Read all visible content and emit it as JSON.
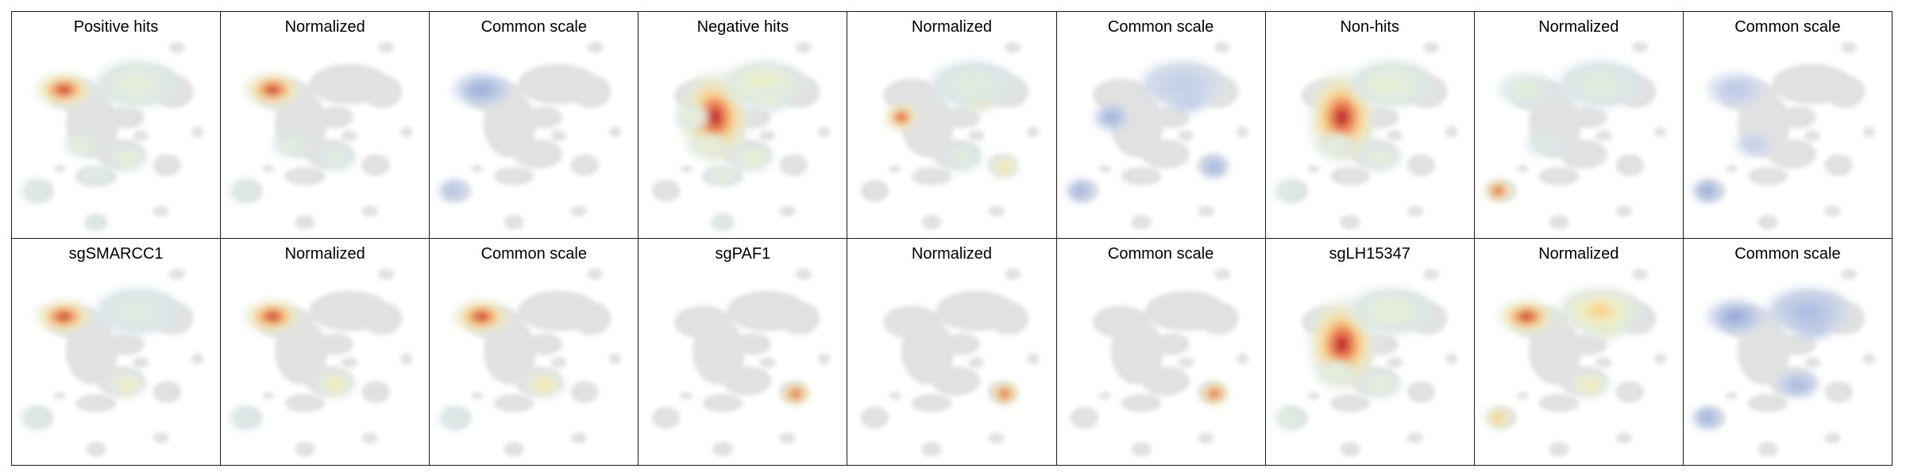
{
  "panels": [
    {
      "title": "Positive hits",
      "colormap": "heat",
      "blobs": [
        {
          "c": "A",
          "v": 1.0
        },
        {
          "c": "B",
          "v": 0.28
        },
        {
          "c": "E",
          "v": 0.3
        },
        {
          "c": "G",
          "v": 0.3
        },
        {
          "c": "H",
          "v": 0.22
        },
        {
          "c": "J",
          "v": 0.2
        },
        {
          "c": "K",
          "v": 0.15
        }
      ]
    },
    {
      "title": "Normalized",
      "colormap": "heat",
      "blobs": [
        {
          "c": "A",
          "v": 1.0
        },
        {
          "c": "E",
          "v": 0.25
        },
        {
          "c": "G",
          "v": 0.22
        },
        {
          "c": "J",
          "v": 0.18
        }
      ]
    },
    {
      "title": "Common scale",
      "colormap": "cool",
      "blobs": [
        {
          "c": "A",
          "v": 0.55
        },
        {
          "c": "J",
          "v": 0.35
        }
      ]
    },
    {
      "title": "Negative hits",
      "colormap": "heat",
      "blobs": [
        {
          "c": "C",
          "v": 1.0
        },
        {
          "c": "B",
          "v": 0.42
        },
        {
          "c": "D",
          "v": 0.3
        },
        {
          "c": "E",
          "v": 0.4
        },
        {
          "c": "F",
          "v": 0.3
        },
        {
          "c": "G",
          "v": 0.38
        },
        {
          "c": "H",
          "v": 0.28
        },
        {
          "c": "K",
          "v": 0.22
        }
      ]
    },
    {
      "title": "Normalized",
      "colormap": "heat",
      "blobs": [
        {
          "c": "D",
          "v": 1.0
        },
        {
          "c": "F",
          "v": 0.7
        },
        {
          "c": "I",
          "v": 0.55
        },
        {
          "c": "B",
          "v": 0.2
        },
        {
          "c": "G",
          "v": 0.2
        }
      ]
    },
    {
      "title": "Common scale",
      "colormap": "cool",
      "blobs": [
        {
          "c": "D",
          "v": 0.55
        },
        {
          "c": "F",
          "v": 0.5
        },
        {
          "c": "I",
          "v": 0.5
        },
        {
          "c": "J",
          "v": 0.5
        },
        {
          "c": "B",
          "v": 0.2
        }
      ]
    },
    {
      "title": "Non-hits",
      "colormap": "heat",
      "blobs": [
        {
          "c": "C",
          "v": 1.0
        },
        {
          "c": "B",
          "v": 0.3
        },
        {
          "c": "E",
          "v": 0.28
        },
        {
          "c": "G",
          "v": 0.28
        },
        {
          "c": "J",
          "v": 0.2
        }
      ]
    },
    {
      "title": "Normalized",
      "colormap": "heat",
      "blobs": [
        {
          "c": "J",
          "v": 1.0
        },
        {
          "c": "A",
          "v": 0.25
        },
        {
          "c": "B",
          "v": 0.2
        },
        {
          "c": "E",
          "v": 0.18
        }
      ]
    },
    {
      "title": "Common scale",
      "colormap": "cool",
      "blobs": [
        {
          "c": "J",
          "v": 0.6
        },
        {
          "c": "A",
          "v": 0.25
        },
        {
          "c": "E",
          "v": 0.2
        }
      ]
    },
    {
      "title": "sgSMARCC1",
      "colormap": "heat",
      "blobs": [
        {
          "c": "A",
          "v": 1.0
        },
        {
          "c": "G",
          "v": 0.45
        },
        {
          "c": "B",
          "v": 0.18
        },
        {
          "c": "J",
          "v": 0.18
        }
      ]
    },
    {
      "title": "Normalized",
      "colormap": "heat",
      "blobs": [
        {
          "c": "A",
          "v": 1.0
        },
        {
          "c": "G",
          "v": 0.5
        },
        {
          "c": "J",
          "v": 0.15
        }
      ]
    },
    {
      "title": "Common scale",
      "colormap": "heat",
      "blobs": [
        {
          "c": "A",
          "v": 1.0
        },
        {
          "c": "G",
          "v": 0.55
        },
        {
          "c": "J",
          "v": 0.15
        }
      ]
    },
    {
      "title": "sgPAF1",
      "colormap": "heat",
      "blobs": [
        {
          "c": "I",
          "v": 1.0
        }
      ]
    },
    {
      "title": "Normalized",
      "colormap": "heat",
      "blobs": [
        {
          "c": "I",
          "v": 1.0
        }
      ]
    },
    {
      "title": "Common scale",
      "colormap": "heat",
      "blobs": [
        {
          "c": "I",
          "v": 1.0
        }
      ]
    },
    {
      "title": "sgLH15347",
      "colormap": "heat",
      "blobs": [
        {
          "c": "C",
          "v": 1.0
        },
        {
          "c": "B",
          "v": 0.3
        },
        {
          "c": "E",
          "v": 0.3
        },
        {
          "c": "G",
          "v": 0.3
        },
        {
          "c": "J",
          "v": 0.25
        }
      ]
    },
    {
      "title": "Normalized",
      "colormap": "heat",
      "blobs": [
        {
          "c": "A",
          "v": 1.0
        },
        {
          "c": "F",
          "v": 0.65
        },
        {
          "c": "B",
          "v": 0.6
        },
        {
          "c": "G",
          "v": 0.5
        },
        {
          "c": "J",
          "v": 0.7
        }
      ]
    },
    {
      "title": "Common scale",
      "colormap": "cool",
      "blobs": [
        {
          "c": "A",
          "v": 0.6
        },
        {
          "c": "F",
          "v": 0.5
        },
        {
          "c": "B",
          "v": 0.4
        },
        {
          "c": "G",
          "v": 0.45
        },
        {
          "c": "J",
          "v": 0.55
        }
      ]
    }
  ],
  "colors": {
    "background_cells": "#dedede",
    "heat_high": "#b40f26",
    "heat_low": "#d5e6ef",
    "cool_high": "#3b4fa0"
  }
}
